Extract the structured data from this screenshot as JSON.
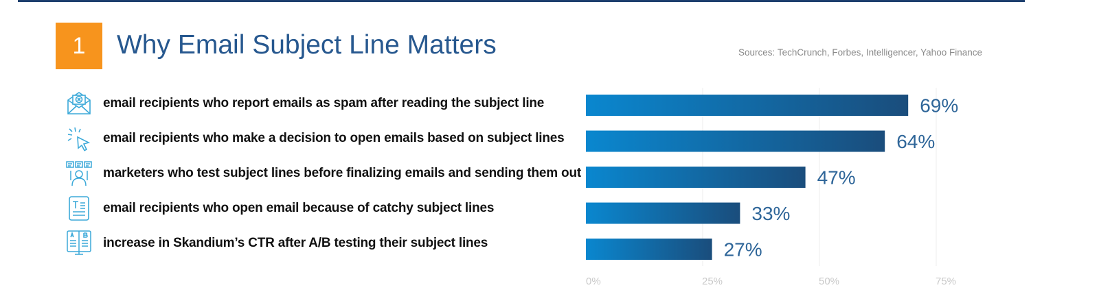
{
  "header": {
    "number": "1",
    "title": "Why Email Subject Line Matters",
    "sources": "Sources: TechCrunch, Forbes, Intelligencer, Yahoo Finance"
  },
  "rows": [
    {
      "label": "email recipients who report emails as spam after reading the subject line",
      "icon": "spam-envelope-icon"
    },
    {
      "label": "email recipients who make a decision to open emails based on subject lines",
      "icon": "cursor-click-icon"
    },
    {
      "label": "marketers who test subject lines before finalizing emails and sending them out",
      "icon": "marketer-testing-icon"
    },
    {
      "label": "email recipients who open email because of catchy subject lines",
      "icon": "document-text-icon"
    },
    {
      "label": "increase in Skandium’s CTR after A/B testing their subject lines",
      "icon": "ab-test-monitor-icon"
    }
  ],
  "chart_data": {
    "type": "bar",
    "orientation": "horizontal",
    "categories": [
      "email recipients who report emails as spam after reading the subject line",
      "email recipients who make a decision to open emails based on subject lines",
      "marketers who test subject lines before finalizing emails and sending them out",
      "email recipients who open email because of catchy subject lines",
      "increase in Skandium’s CTR after A/B testing their subject lines"
    ],
    "values": [
      69,
      64,
      47,
      33,
      27
    ],
    "value_labels": [
      "69%",
      "64%",
      "47%",
      "33%",
      "27%"
    ],
    "xlim": [
      0,
      75
    ],
    "x_ticks": [
      0,
      25,
      50,
      75
    ],
    "x_tick_labels": [
      "0%",
      "25%",
      "50%",
      "75%"
    ],
    "grid": true,
    "legend": "none"
  },
  "colors": {
    "accent": "#f7941d",
    "title": "#27588f",
    "bar_start": "#0a87cf",
    "bar_end": "#1a4d7c",
    "value_label": "#2f6699",
    "icon": "#3ba9d9",
    "grid": "#ececec",
    "tick": "#c9c9c9"
  }
}
